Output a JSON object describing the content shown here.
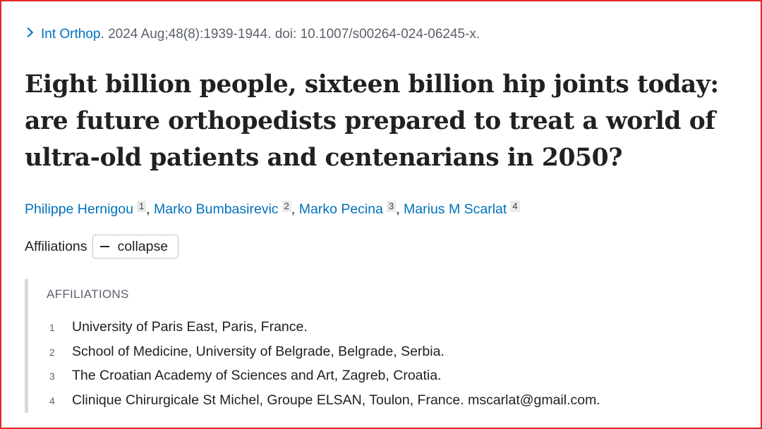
{
  "citation": {
    "journal": "Int Orthop.",
    "details": "2024 Aug;48(8):1939-1944. doi: 10.1007/s00264-024-06245-x."
  },
  "title": "Eight billion people, sixteen billion hip joints today: are future orthopedists prepared to treat a world of ultra-old patients and centenarians in 2050?",
  "authors": [
    {
      "name": "Philippe Hernigou",
      "affil": "1"
    },
    {
      "name": "Marko Bumbasirevic",
      "affil": "2"
    },
    {
      "name": "Marko Pecina",
      "affil": "3"
    },
    {
      "name": "Marius M Scarlat",
      "affil": "4"
    }
  ],
  "author_separator": ",",
  "affiliations_toggle": {
    "label": "Affiliations",
    "button_label": "collapse"
  },
  "affiliations": {
    "heading": "AFFILIATIONS",
    "items": [
      {
        "num": "1",
        "text": "University of Paris East, Paris, France."
      },
      {
        "num": "2",
        "text": "School of Medicine, University of Belgrade, Belgrade, Serbia."
      },
      {
        "num": "3",
        "text": "The Croatian Academy of Sciences and Art, Zagreb, Croatia."
      },
      {
        "num": "4",
        "text": "Clinique Chirurgicale St Michel, Groupe ELSAN, Toulon, France. mscarlat@gmail.com."
      }
    ]
  },
  "colors": {
    "link": "#0071bc",
    "frame": "#e3262b",
    "muted": "#5b616b"
  }
}
